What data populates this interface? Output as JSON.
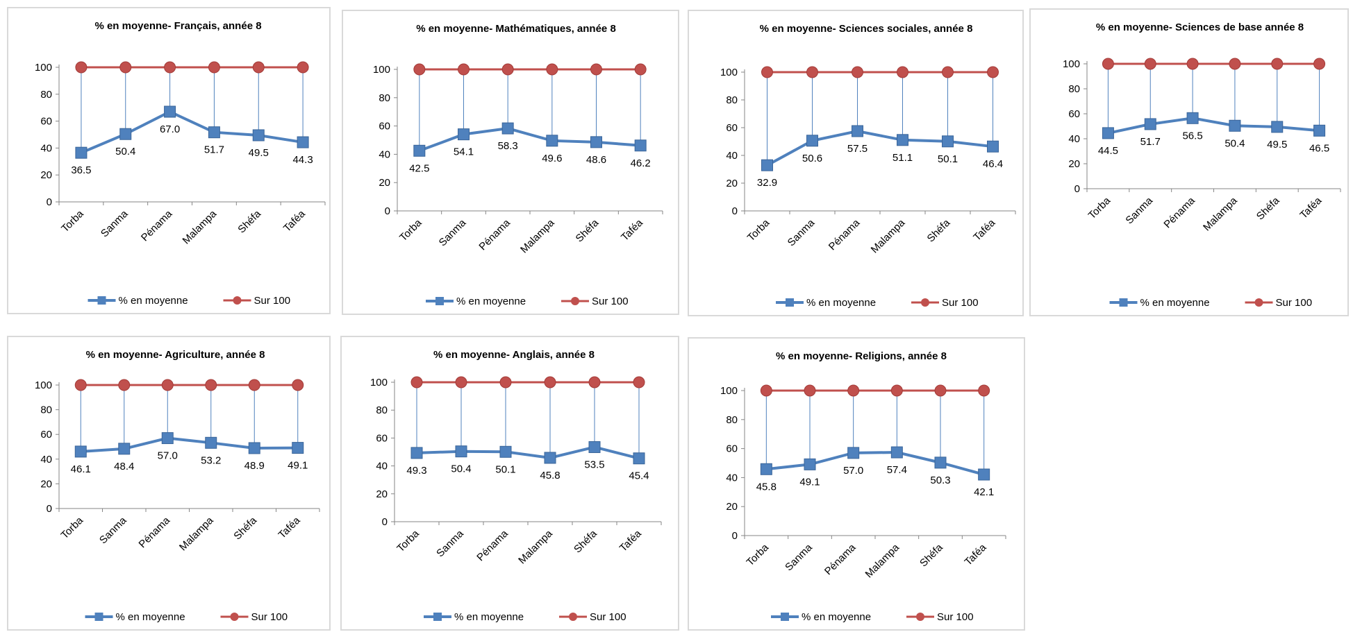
{
  "colors": {
    "avg": "#4f81bd",
    "ref": "#c0504d",
    "axis": "#868686",
    "drop": "#4f81bd"
  },
  "chart_data": [
    {
      "type": "line",
      "title": "% en moyenne- Français, année 8",
      "categories": [
        "Torba",
        "Sanma",
        "Pénama",
        "Malampa",
        "Shéfa",
        "Taféa"
      ],
      "series": [
        {
          "name": "% en moyenne",
          "values": [
            36.5,
            50.4,
            67.0,
            51.7,
            49.5,
            44.3
          ],
          "labels": [
            "36.5",
            "50.4",
            "67.0",
            "51.7",
            "49.5",
            "44.3"
          ]
        },
        {
          "name": "Sur 100",
          "values": [
            100,
            100,
            100,
            100,
            100,
            100
          ]
        }
      ],
      "yticks": [
        "0",
        "20",
        "40",
        "60",
        "80",
        "100"
      ],
      "ylim": [
        0,
        100
      ],
      "legend": "bottom"
    },
    {
      "type": "line",
      "title": "% en moyenne- Mathématiques, année 8",
      "categories": [
        "Torba",
        "Sanma",
        "Pénama",
        "Malampa",
        "Shéfa",
        "Taféa"
      ],
      "series": [
        {
          "name": "% en moyenne",
          "values": [
            42.5,
            54.1,
            58.3,
            49.6,
            48.6,
            46.2
          ],
          "labels": [
            "42.5",
            "54.1",
            "58.3",
            "49.6",
            "48.6",
            "46.2"
          ]
        },
        {
          "name": "Sur 100",
          "values": [
            100,
            100,
            100,
            100,
            100,
            100
          ]
        }
      ],
      "yticks": [
        "0",
        "20",
        "40",
        "60",
        "80",
        "100"
      ],
      "ylim": [
        0,
        100
      ],
      "legend": "bottom"
    },
    {
      "type": "line",
      "title": "% en moyenne- Sciences sociales, année 8",
      "categories": [
        "Torba",
        "Sanma",
        "Pénama",
        "Malampa",
        "Shéfa",
        "Taféa"
      ],
      "series": [
        {
          "name": "% en moyenne",
          "values": [
            32.9,
            50.6,
            57.5,
            51.1,
            50.1,
            46.4
          ],
          "labels": [
            "32.9",
            "50.6",
            "57.5",
            "51.1",
            "50.1",
            "46.4"
          ]
        },
        {
          "name": "Sur 100",
          "values": [
            100,
            100,
            100,
            100,
            100,
            100
          ]
        }
      ],
      "yticks": [
        "0",
        "20",
        "40",
        "60",
        "80",
        "100"
      ],
      "ylim": [
        0,
        100
      ],
      "legend": "bottom"
    },
    {
      "type": "line",
      "title": "% en moyenne- Sciences de base année 8",
      "categories": [
        "Torba",
        "Sanma",
        "Pénama",
        "Malampa",
        "Shéfa",
        "Taféa"
      ],
      "series": [
        {
          "name": "% en moyenne",
          "values": [
            44.5,
            51.7,
            56.5,
            50.4,
            49.5,
            46.5
          ],
          "labels": [
            "44.5",
            "51.7",
            "56.5",
            "50.4",
            "49.5",
            "46.5"
          ]
        },
        {
          "name": "Sur 100",
          "values": [
            100,
            100,
            100,
            100,
            100,
            100
          ]
        }
      ],
      "yticks": [
        "0",
        "20",
        "40",
        "60",
        "80",
        "100"
      ],
      "ylim": [
        0,
        100
      ],
      "legend": "bottom"
    },
    {
      "type": "line",
      "title": "% en moyenne- Agriculture, année 8",
      "categories": [
        "Torba",
        "Sanma",
        "Pénama",
        "Malampa",
        "Shéfa",
        "Taféa"
      ],
      "series": [
        {
          "name": "% en moyenne",
          "values": [
            46.1,
            48.4,
            57.0,
            53.2,
            48.9,
            49.1
          ],
          "labels": [
            "46.1",
            "48.4",
            "57.0",
            "53.2",
            "48.9",
            "49.1"
          ]
        },
        {
          "name": "Sur 100",
          "values": [
            100,
            100,
            100,
            100,
            100,
            100
          ]
        }
      ],
      "yticks": [
        "0",
        "20",
        "40",
        "60",
        "80",
        "100"
      ],
      "ylim": [
        0,
        100
      ],
      "legend": "bottom"
    },
    {
      "type": "line",
      "title": "% en moyenne- Anglais, année 8",
      "categories": [
        "Torba",
        "Sanma",
        "Pénama",
        "Malampa",
        "Shéfa",
        "Taféa"
      ],
      "series": [
        {
          "name": "% en moyenne",
          "values": [
            49.3,
            50.4,
            50.1,
            45.8,
            53.5,
            45.4
          ],
          "labels": [
            "49.3",
            "50.4",
            "50.1",
            "45.8",
            "53.5",
            "45.4"
          ]
        },
        {
          "name": "Sur 100",
          "values": [
            100,
            100,
            100,
            100,
            100,
            100
          ]
        }
      ],
      "yticks": [
        "0",
        "20",
        "40",
        "60",
        "80",
        "100"
      ],
      "ylim": [
        0,
        100
      ],
      "legend": "bottom"
    },
    {
      "type": "line",
      "title": "% en moyenne- Religions, année 8",
      "categories": [
        "Torba",
        "Sanma",
        "Pénama",
        "Malampa",
        "Shéfa",
        "Taféa"
      ],
      "series": [
        {
          "name": "% en moyenne",
          "values": [
            45.8,
            49.1,
            57.0,
            57.4,
            50.3,
            42.1
          ],
          "labels": [
            "45.8",
            "49.1",
            "57.0",
            "57.4",
            "50.3",
            "42.1"
          ]
        },
        {
          "name": "Sur 100",
          "values": [
            100,
            100,
            100,
            100,
            100,
            100
          ]
        }
      ],
      "yticks": [
        "0",
        "20",
        "40",
        "60",
        "80",
        "100"
      ],
      "ylim": [
        0,
        100
      ],
      "legend": "bottom"
    }
  ]
}
